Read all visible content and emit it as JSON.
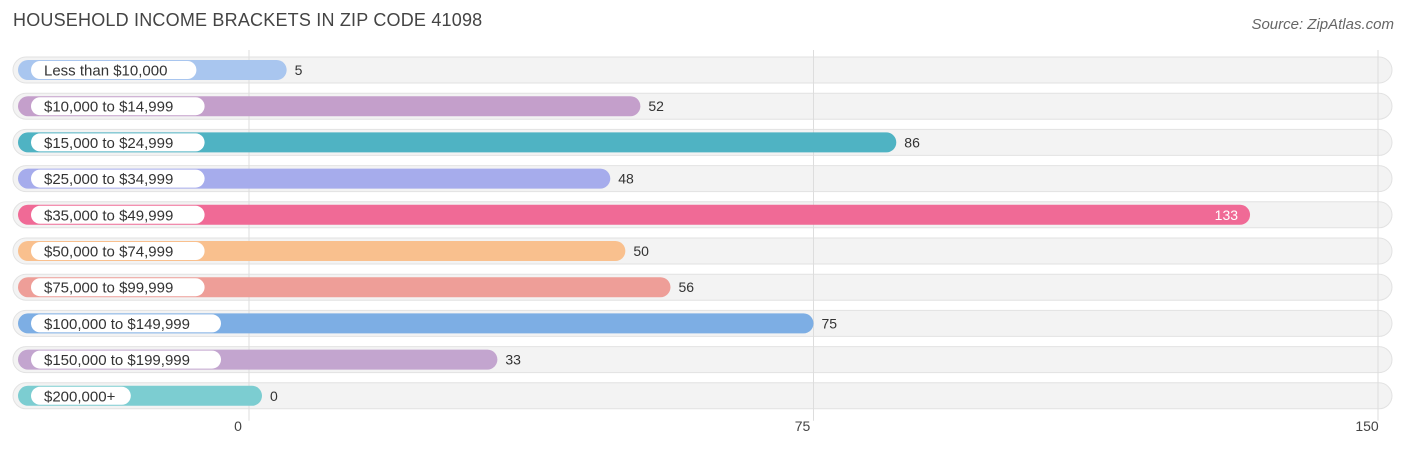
{
  "title": "HOUSEHOLD INCOME BRACKETS IN ZIP CODE 41098",
  "source": "Source: ZipAtlas.com",
  "chart_data": {
    "type": "bar",
    "orientation": "horizontal",
    "title": "HOUSEHOLD INCOME BRACKETS IN ZIP CODE 41098",
    "categories": [
      "Less than $10,000",
      "$10,000 to $14,999",
      "$15,000 to $24,999",
      "$25,000 to $34,999",
      "$35,000 to $49,999",
      "$50,000 to $74,999",
      "$75,000 to $99,999",
      "$100,000 to $149,999",
      "$150,000 to $199,999",
      "$200,000+"
    ],
    "values": [
      5,
      52,
      86,
      48,
      133,
      50,
      56,
      75,
      33,
      0
    ],
    "colors": [
      "#a9c6ef",
      "#c49fcb",
      "#4fb3c3",
      "#a6acec",
      "#f06a96",
      "#f9c08e",
      "#ee9e98",
      "#7daee4",
      "#c3a5cf",
      "#7ccdd1"
    ],
    "xlim": [
      0,
      150
    ],
    "xticks": [
      0,
      75,
      150
    ],
    "grid": true
  }
}
